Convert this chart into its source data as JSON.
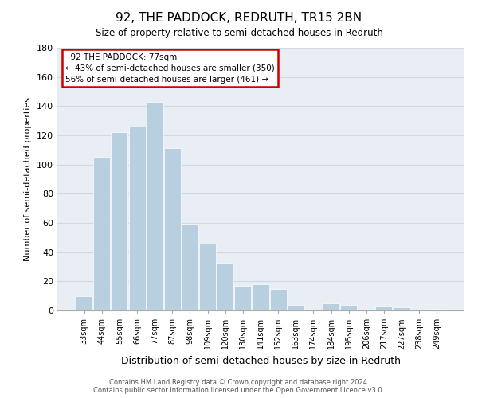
{
  "title": "92, THE PADDOCK, REDRUTH, TR15 2BN",
  "subtitle": "Size of property relative to semi-detached houses in Redruth",
  "xlabel": "Distribution of semi-detached houses by size in Redruth",
  "ylabel": "Number of semi-detached properties",
  "categories": [
    "33sqm",
    "44sqm",
    "55sqm",
    "66sqm",
    "77sqm",
    "87sqm",
    "98sqm",
    "109sqm",
    "120sqm",
    "130sqm",
    "141sqm",
    "152sqm",
    "163sqm",
    "174sqm",
    "184sqm",
    "195sqm",
    "206sqm",
    "217sqm",
    "227sqm",
    "238sqm",
    "249sqm"
  ],
  "values": [
    10,
    105,
    122,
    126,
    143,
    111,
    59,
    46,
    32,
    17,
    18,
    15,
    4,
    0,
    5,
    4,
    0,
    3,
    2,
    0,
    1
  ],
  "bar_color": "#b8cfe0",
  "ylim": [
    0,
    180
  ],
  "yticks": [
    0,
    20,
    40,
    60,
    80,
    100,
    120,
    140,
    160,
    180
  ],
  "annotation_title": "92 THE PADDOCK: 77sqm",
  "annotation_line1": "← 43% of semi-detached houses are smaller (350)",
  "annotation_line2": "56% of semi-detached houses are larger (461) →",
  "footer_line1": "Contains HM Land Registry data © Crown copyright and database right 2024.",
  "footer_line2": "Contains public sector information licensed under the Open Government Licence v3.0.",
  "box_edge_color": "#cc0000",
  "grid_color": "#d0d8e0",
  "bg_color": "#e8eef4"
}
